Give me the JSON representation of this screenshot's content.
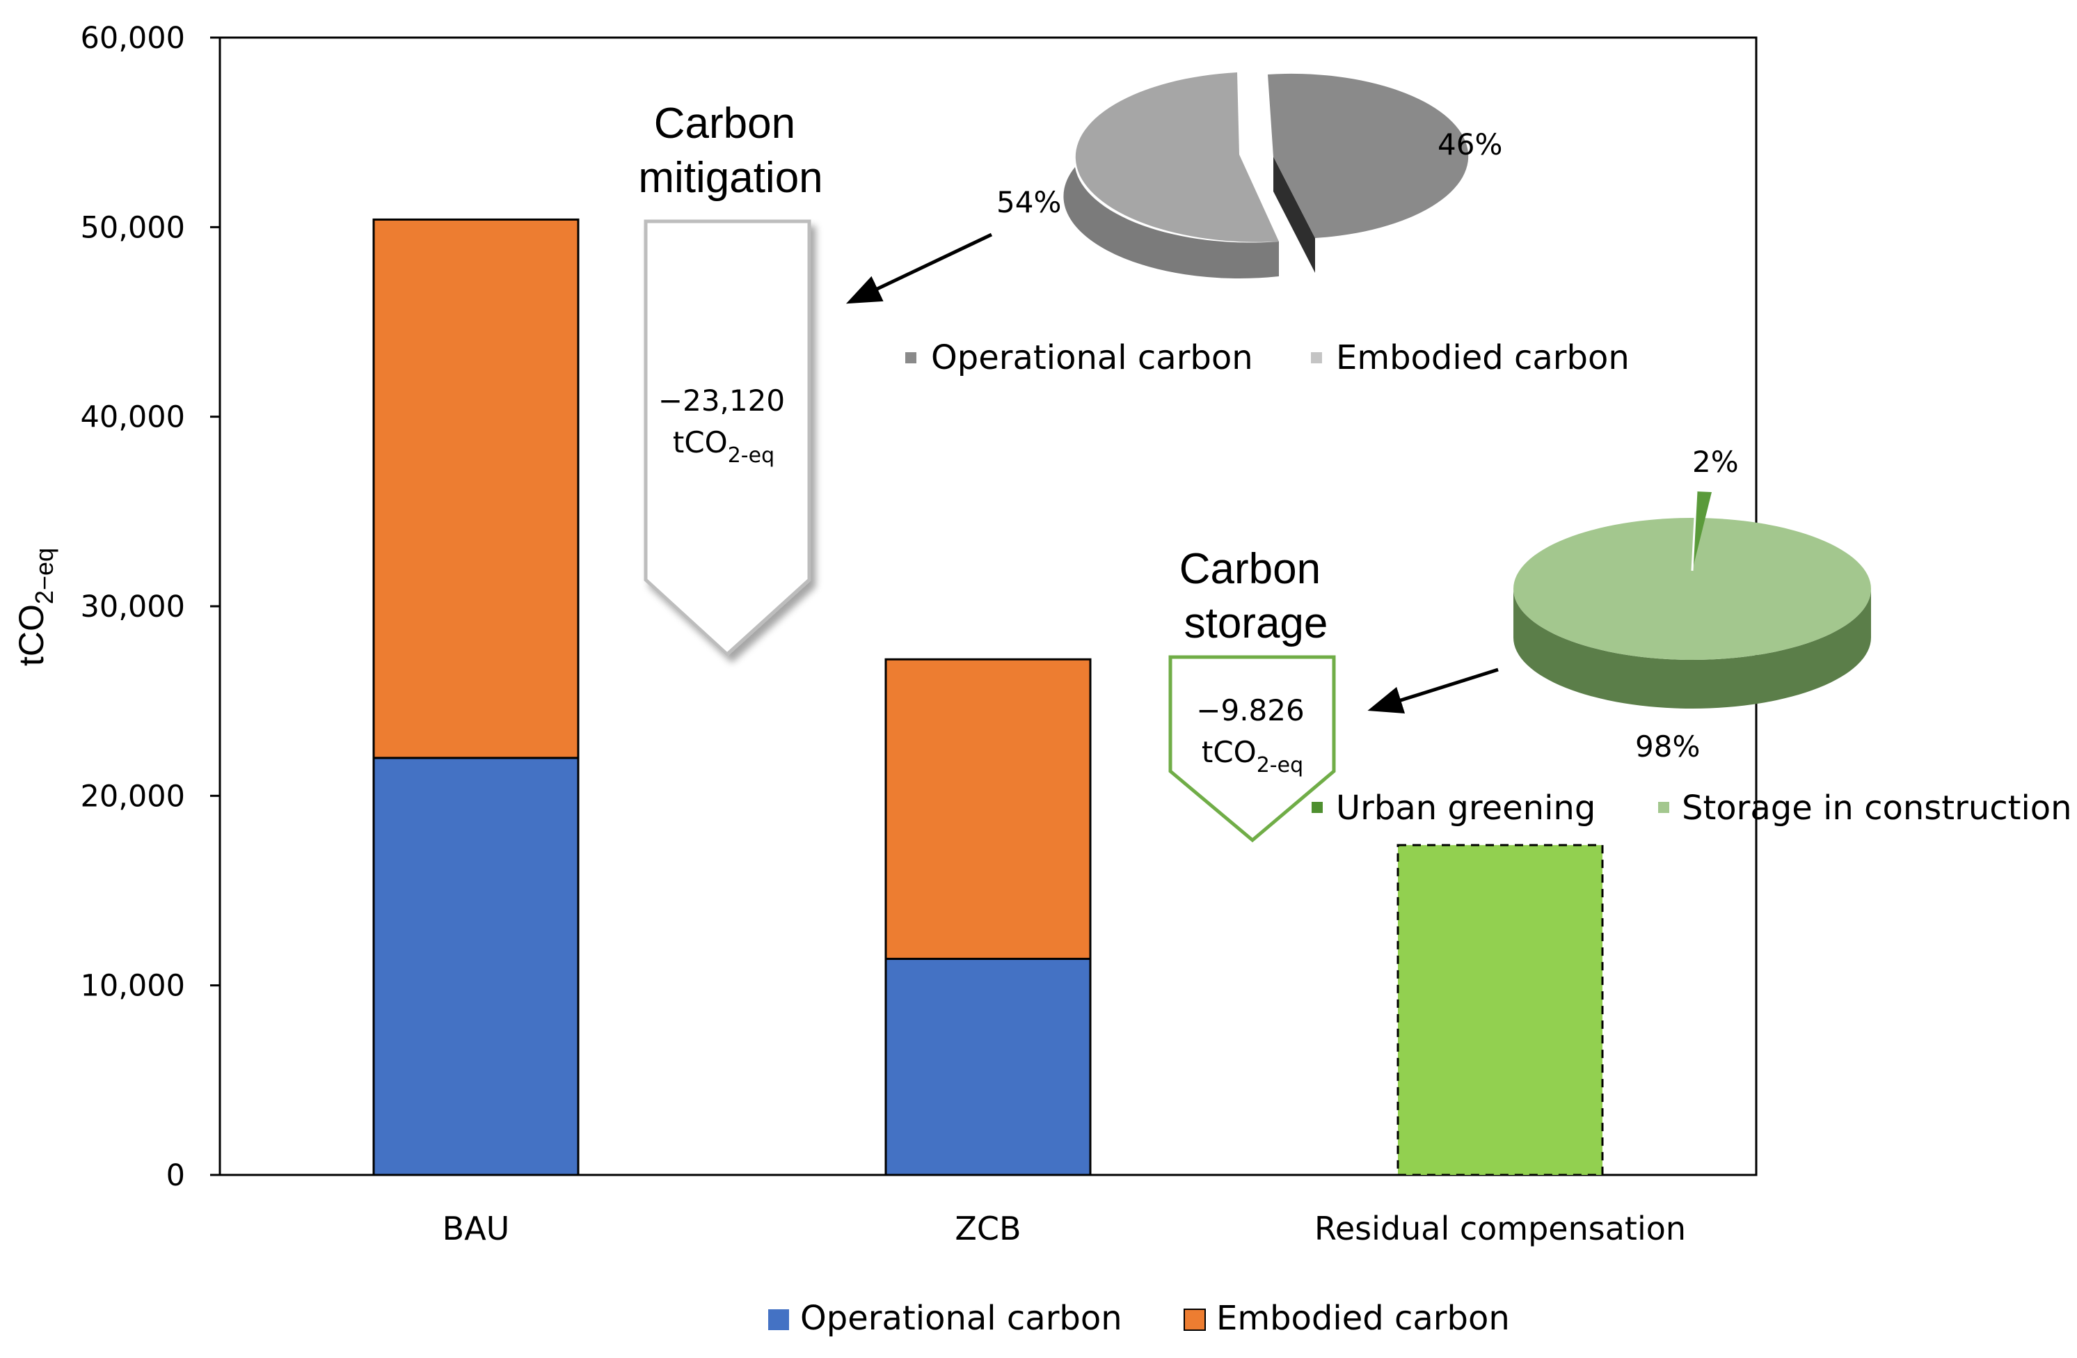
{
  "chart_data": {
    "type": "bar",
    "stacked": true,
    "categories": [
      "BAU",
      "ZCB",
      "Residual compensation"
    ],
    "series": [
      {
        "name": "Operational carbon",
        "values": [
          22000,
          11400,
          null
        ],
        "color": "#4472C4"
      },
      {
        "name": "Embodied carbon",
        "values": [
          28400,
          15800,
          null
        ],
        "color": "#ED7D31"
      },
      {
        "name": "Residual compensation",
        "values": [
          null,
          null,
          17400
        ],
        "color": "#92D050",
        "border": "dashed"
      }
    ],
    "ylabel_main": "tCO",
    "ylabel_sub": "2−eq",
    "ylim": [
      0,
      60000
    ],
    "yticks": [
      0,
      10000,
      20000,
      30000,
      40000,
      50000,
      60000
    ],
    "ytick_labels": [
      "0",
      "10,000",
      "20,000",
      "30,000",
      "40,000",
      "50,000",
      "60,000"
    ],
    "legend": {
      "placement": "bottom-center",
      "items": [
        {
          "label": "Operational carbon",
          "color": "#4472C4"
        },
        {
          "label": "Embodied carbon",
          "color": "#ED7D31"
        }
      ]
    },
    "annotations": {
      "mitigation": {
        "title_line1": "Carbon",
        "title_line2": "mitigation",
        "value": "−23,120",
        "unit_main": "tCO",
        "unit_sub": "2-eq"
      },
      "storage": {
        "title_line1": "Carbon",
        "title_line2": "storage",
        "value": "−9.826",
        "unit_main": "tCO",
        "unit_sub": "2-eq"
      }
    },
    "pies": [
      {
        "type": "pie",
        "name": "mitigation-breakdown",
        "slices": [
          {
            "label": "Operational carbon",
            "value": 46,
            "display": "46%",
            "color": "#8a8a8a",
            "legend_color": "#8a8a8a"
          },
          {
            "label": "Embodied carbon",
            "value": 54,
            "display": "54%",
            "color": "#a6a6a6",
            "legend_color": "#c4c4c4"
          }
        ]
      },
      {
        "type": "pie",
        "name": "storage-breakdown",
        "slices": [
          {
            "label": "Urban greening",
            "value": 2,
            "display": "2%",
            "color": "#5a9a3a",
            "legend_color": "#4e8f2f"
          },
          {
            "label": "Storage in construction",
            "value": 98,
            "display": "98%",
            "color": "#a3c78e",
            "legend_color": "#a3c78e"
          }
        ]
      }
    ]
  }
}
